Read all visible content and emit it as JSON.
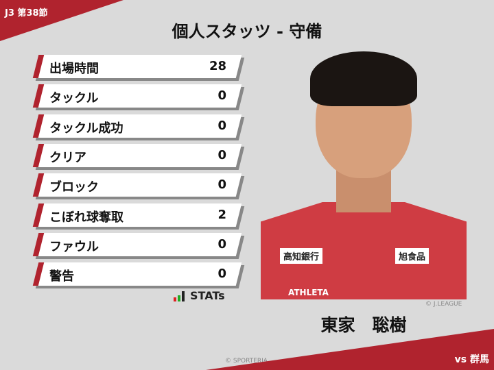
{
  "header": {
    "round": "J3 第38節",
    "title": "個人スタッツ - 守備"
  },
  "stats": [
    {
      "label": "出場時間",
      "value": "28"
    },
    {
      "label": "タックル",
      "value": "0"
    },
    {
      "label": "タックル成功",
      "value": "0"
    },
    {
      "label": "クリア",
      "value": "0"
    },
    {
      "label": "ブロック",
      "value": "0"
    },
    {
      "label": "こぼれ球奪取",
      "value": "2"
    },
    {
      "label": "ファウル",
      "value": "0"
    },
    {
      "label": "警告",
      "value": "0"
    }
  ],
  "logo": {
    "text": "STATs"
  },
  "player": {
    "name": "東家　聡樹",
    "photo_credit": "© J.LEAGUE",
    "sponsor_left": "高知銀行",
    "sponsor_right": "旭食品",
    "kit_brand": "ATHLETA"
  },
  "footer": {
    "copyright": "© SPORTERIA",
    "opponent": "vs 群馬"
  },
  "colors": {
    "accent": "#b0232e",
    "background": "#dadada"
  }
}
